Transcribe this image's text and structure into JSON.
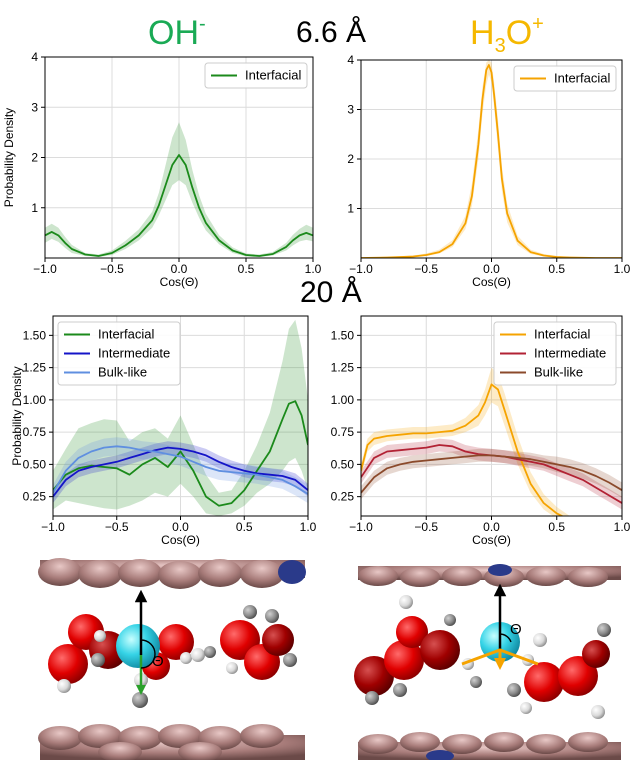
{
  "headings": {
    "oh_title": "OH",
    "oh_sup": "-",
    "h3o_title_h": "H",
    "h3o_title_sub": "3",
    "h3o_title_o": "O",
    "h3o_title_sup": "+",
    "distance_top": "6.6 Å",
    "distance_mid": "20 Å"
  },
  "theta_symbol": "Θ",
  "colors": {
    "interfacial_oh": "#1b8a1b",
    "interfacial_h3o": "#f5a300",
    "intermediate_oh": "#1414c8",
    "bulk_oh": "#5f8fe0",
    "intermediate_h3o": "#b22234",
    "bulk_h3o": "#8b4a2b",
    "oh_title": "#1aaa55",
    "h3o_title": "#f5b800"
  },
  "chart_data": [
    {
      "id": "oh_6_6",
      "type": "line",
      "xlabel": "Cos(Θ)",
      "ylabel": "Probability Density",
      "xlim": [
        -1.0,
        1.0
      ],
      "ylim": [
        0.0,
        4.0
      ],
      "xticks": [
        "−1.0",
        "−0.5",
        "0.0",
        "0.5",
        "1.0"
      ],
      "yticks": [
        "1",
        "2",
        "3",
        "4"
      ],
      "ytick_values": [
        1,
        2,
        3,
        4
      ],
      "grid": true,
      "legend": "top-right",
      "series": [
        {
          "name": "Interfacial",
          "color": "#1b8a1b",
          "x": [
            -1.0,
            -0.95,
            -0.9,
            -0.85,
            -0.8,
            -0.7,
            -0.6,
            -0.5,
            -0.4,
            -0.3,
            -0.2,
            -0.15,
            -0.1,
            -0.05,
            0.0,
            0.05,
            0.1,
            0.15,
            0.2,
            0.3,
            0.4,
            0.5,
            0.6,
            0.7,
            0.8,
            0.85,
            0.9,
            0.95,
            1.0
          ],
          "y": [
            0.45,
            0.52,
            0.45,
            0.3,
            0.18,
            0.07,
            0.04,
            0.1,
            0.25,
            0.45,
            0.75,
            1.05,
            1.45,
            1.85,
            2.05,
            1.85,
            1.4,
            1.0,
            0.7,
            0.35,
            0.15,
            0.06,
            0.04,
            0.08,
            0.22,
            0.35,
            0.45,
            0.5,
            0.45
          ],
          "band_low": [
            0.3,
            0.38,
            0.32,
            0.2,
            0.1,
            0.04,
            0.02,
            0.06,
            0.18,
            0.35,
            0.6,
            0.85,
            1.15,
            1.45,
            1.55,
            1.45,
            1.1,
            0.8,
            0.55,
            0.27,
            0.1,
            0.03,
            0.02,
            0.05,
            0.15,
            0.25,
            0.33,
            0.36,
            0.33
          ],
          "band_high": [
            0.6,
            0.68,
            0.6,
            0.42,
            0.26,
            0.1,
            0.07,
            0.15,
            0.34,
            0.57,
            0.92,
            1.3,
            1.85,
            2.4,
            2.7,
            2.35,
            1.75,
            1.25,
            0.88,
            0.45,
            0.21,
            0.09,
            0.07,
            0.12,
            0.3,
            0.46,
            0.58,
            0.66,
            0.6
          ]
        }
      ]
    },
    {
      "id": "h3o_6_6",
      "type": "line",
      "xlabel": "Cos(Θ)",
      "ylabel": "",
      "xlim": [
        -1.0,
        1.0
      ],
      "ylim": [
        0.0,
        4.0
      ],
      "xticks": [
        "−1.0",
        "−0.5",
        "0.0",
        "0.5",
        "1.0"
      ],
      "yticks": [
        "1",
        "2",
        "3",
        "4"
      ],
      "ytick_values": [
        1,
        2,
        3,
        4
      ],
      "grid": true,
      "legend": "top-right",
      "series": [
        {
          "name": "Interfacial",
          "color": "#f5a300",
          "x": [
            -1.0,
            -0.8,
            -0.6,
            -0.5,
            -0.4,
            -0.3,
            -0.2,
            -0.15,
            -0.1,
            -0.07,
            -0.04,
            -0.02,
            0.0,
            0.02,
            0.05,
            0.08,
            0.12,
            0.2,
            0.3,
            0.4,
            0.5,
            0.6,
            0.8,
            1.0
          ],
          "y": [
            0.0,
            0.01,
            0.03,
            0.06,
            0.12,
            0.28,
            0.7,
            1.25,
            2.3,
            3.2,
            3.8,
            3.9,
            3.75,
            3.3,
            2.5,
            1.6,
            0.9,
            0.35,
            0.12,
            0.05,
            0.02,
            0.01,
            0.0,
            0.0
          ],
          "band_low": [
            0.0,
            0.0,
            0.02,
            0.04,
            0.09,
            0.22,
            0.58,
            1.05,
            2.0,
            2.9,
            3.5,
            3.7,
            3.55,
            3.05,
            2.2,
            1.35,
            0.72,
            0.26,
            0.08,
            0.03,
            0.01,
            0.0,
            0.0,
            0.0
          ],
          "band_high": [
            0.01,
            0.02,
            0.05,
            0.09,
            0.17,
            0.36,
            0.85,
            1.5,
            2.6,
            3.45,
            3.95,
            4.0,
            3.95,
            3.55,
            2.8,
            1.85,
            1.1,
            0.45,
            0.17,
            0.08,
            0.04,
            0.02,
            0.01,
            0.01
          ]
        }
      ]
    },
    {
      "id": "oh_20",
      "type": "line",
      "xlabel": "Cos(Θ)",
      "ylabel": "Probability Density",
      "xlim": [
        -1.0,
        1.0
      ],
      "ylim": [
        0.1,
        1.65
      ],
      "xticks": [
        "−1.0",
        "−0.5",
        "0.0",
        "0.5",
        "1.0"
      ],
      "yticks": [
        "0.25",
        "0.50",
        "0.75",
        "1.00",
        "1.25",
        "1.50"
      ],
      "ytick_values": [
        0.25,
        0.5,
        0.75,
        1.0,
        1.25,
        1.5
      ],
      "grid": true,
      "legend": "top-left",
      "series": [
        {
          "name": "Interfacial",
          "color": "#1b8a1b",
          "x": [
            -1.0,
            -0.9,
            -0.8,
            -0.7,
            -0.6,
            -0.5,
            -0.4,
            -0.3,
            -0.2,
            -0.1,
            0.0,
            0.1,
            0.2,
            0.3,
            0.4,
            0.5,
            0.6,
            0.7,
            0.8,
            0.85,
            0.9,
            0.95,
            1.0
          ],
          "y": [
            0.3,
            0.42,
            0.47,
            0.49,
            0.48,
            0.47,
            0.42,
            0.5,
            0.55,
            0.48,
            0.6,
            0.45,
            0.25,
            0.18,
            0.2,
            0.3,
            0.45,
            0.6,
            0.85,
            0.97,
            0.99,
            0.88,
            0.65
          ],
          "band_low": [
            0.15,
            0.22,
            0.2,
            0.18,
            0.16,
            0.15,
            0.18,
            0.22,
            0.28,
            0.25,
            0.35,
            0.25,
            0.12,
            0.1,
            0.12,
            0.18,
            0.28,
            0.35,
            0.45,
            0.52,
            0.55,
            0.45,
            0.3
          ],
          "band_high": [
            0.45,
            0.62,
            0.78,
            0.82,
            0.85,
            0.84,
            0.68,
            0.75,
            0.78,
            0.7,
            0.88,
            0.65,
            0.42,
            0.28,
            0.3,
            0.45,
            0.65,
            0.9,
            1.3,
            1.55,
            1.62,
            1.4,
            1.0
          ]
        },
        {
          "name": "Intermediate",
          "color": "#1414c8",
          "x": [
            -1.0,
            -0.9,
            -0.8,
            -0.7,
            -0.6,
            -0.5,
            -0.4,
            -0.3,
            -0.2,
            -0.1,
            0.0,
            0.1,
            0.2,
            0.3,
            0.4,
            0.5,
            0.6,
            0.7,
            0.8,
            0.9,
            1.0
          ],
          "y": [
            0.25,
            0.38,
            0.45,
            0.48,
            0.5,
            0.52,
            0.55,
            0.58,
            0.61,
            0.63,
            0.62,
            0.6,
            0.57,
            0.52,
            0.48,
            0.45,
            0.43,
            0.42,
            0.41,
            0.38,
            0.3
          ],
          "band_low": [
            0.2,
            0.33,
            0.4,
            0.43,
            0.45,
            0.47,
            0.5,
            0.53,
            0.56,
            0.58,
            0.57,
            0.55,
            0.52,
            0.47,
            0.43,
            0.4,
            0.38,
            0.37,
            0.36,
            0.33,
            0.25
          ],
          "band_high": [
            0.3,
            0.43,
            0.5,
            0.53,
            0.55,
            0.57,
            0.6,
            0.63,
            0.66,
            0.68,
            0.67,
            0.65,
            0.62,
            0.57,
            0.53,
            0.5,
            0.48,
            0.47,
            0.46,
            0.43,
            0.35
          ]
        },
        {
          "name": "Bulk-like",
          "color": "#5f8fe0",
          "x": [
            -1.0,
            -0.9,
            -0.8,
            -0.7,
            -0.6,
            -0.5,
            -0.4,
            -0.3,
            -0.2,
            -0.1,
            0.0,
            0.1,
            0.2,
            0.3,
            0.4,
            0.5,
            0.6,
            0.7,
            0.8,
            0.9,
            1.0
          ],
          "y": [
            0.28,
            0.45,
            0.55,
            0.6,
            0.63,
            0.64,
            0.63,
            0.61,
            0.6,
            0.58,
            0.56,
            0.52,
            0.48,
            0.45,
            0.44,
            0.43,
            0.42,
            0.4,
            0.38,
            0.33,
            0.27
          ],
          "band_low": [
            0.22,
            0.38,
            0.48,
            0.53,
            0.56,
            0.57,
            0.56,
            0.54,
            0.53,
            0.51,
            0.49,
            0.45,
            0.41,
            0.38,
            0.37,
            0.36,
            0.35,
            0.33,
            0.31,
            0.26,
            0.2
          ],
          "band_high": [
            0.34,
            0.52,
            0.62,
            0.67,
            0.7,
            0.71,
            0.7,
            0.68,
            0.67,
            0.65,
            0.63,
            0.59,
            0.55,
            0.52,
            0.51,
            0.5,
            0.49,
            0.47,
            0.45,
            0.4,
            0.34
          ]
        }
      ]
    },
    {
      "id": "h3o_20",
      "type": "line",
      "xlabel": "Cos(Θ)",
      "ylabel": "",
      "xlim": [
        -1.0,
        1.0
      ],
      "ylim": [
        0.1,
        1.65
      ],
      "xticks": [
        "−1.0",
        "−0.5",
        "0.0",
        "0.5",
        "1.0"
      ],
      "yticks": [
        "0.25",
        "0.50",
        "0.75",
        "1.00",
        "1.25",
        "1.50"
      ],
      "ytick_values": [
        0.25,
        0.5,
        0.75,
        1.0,
        1.25,
        1.5
      ],
      "grid": true,
      "legend": "top-right",
      "series": [
        {
          "name": "Interfacial",
          "color": "#f5a300",
          "x": [
            -1.0,
            -0.95,
            -0.9,
            -0.8,
            -0.7,
            -0.6,
            -0.5,
            -0.4,
            -0.3,
            -0.2,
            -0.1,
            -0.05,
            0.0,
            0.05,
            0.1,
            0.2,
            0.3,
            0.4,
            0.5,
            0.6,
            0.7,
            0.8,
            0.9,
            1.0
          ],
          "y": [
            0.45,
            0.65,
            0.7,
            0.72,
            0.73,
            0.74,
            0.74,
            0.75,
            0.76,
            0.8,
            0.88,
            0.98,
            1.12,
            1.08,
            0.92,
            0.6,
            0.35,
            0.2,
            0.12,
            0.07,
            0.04,
            0.02,
            0.01,
            0.01
          ],
          "band_low": [
            0.4,
            0.6,
            0.65,
            0.68,
            0.69,
            0.7,
            0.7,
            0.71,
            0.72,
            0.75,
            0.8,
            0.88,
            0.98,
            0.95,
            0.8,
            0.5,
            0.28,
            0.15,
            0.08,
            0.04,
            0.02,
            0.01,
            0.0,
            0.0
          ],
          "band_high": [
            0.5,
            0.7,
            0.75,
            0.77,
            0.78,
            0.79,
            0.79,
            0.8,
            0.81,
            0.86,
            0.96,
            1.08,
            1.25,
            1.2,
            1.05,
            0.72,
            0.44,
            0.27,
            0.17,
            0.1,
            0.06,
            0.04,
            0.02,
            0.02
          ]
        },
        {
          "name": "Intermediate",
          "color": "#b22234",
          "x": [
            -1.0,
            -0.9,
            -0.8,
            -0.7,
            -0.6,
            -0.5,
            -0.4,
            -0.3,
            -0.2,
            -0.1,
            0.0,
            0.1,
            0.2,
            0.3,
            0.4,
            0.5,
            0.6,
            0.7,
            0.8,
            0.9,
            1.0
          ],
          "y": [
            0.4,
            0.55,
            0.6,
            0.61,
            0.62,
            0.63,
            0.65,
            0.64,
            0.6,
            0.58,
            0.57,
            0.56,
            0.54,
            0.52,
            0.5,
            0.46,
            0.42,
            0.38,
            0.32,
            0.26,
            0.2
          ],
          "band_low": [
            0.35,
            0.5,
            0.55,
            0.56,
            0.57,
            0.58,
            0.6,
            0.59,
            0.55,
            0.53,
            0.52,
            0.51,
            0.49,
            0.47,
            0.45,
            0.41,
            0.37,
            0.33,
            0.27,
            0.21,
            0.15
          ],
          "band_high": [
            0.45,
            0.6,
            0.65,
            0.66,
            0.67,
            0.68,
            0.7,
            0.69,
            0.65,
            0.63,
            0.62,
            0.61,
            0.59,
            0.57,
            0.55,
            0.51,
            0.47,
            0.43,
            0.37,
            0.31,
            0.25
          ]
        },
        {
          "name": "Bulk-like",
          "color": "#8b4a2b",
          "x": [
            -1.0,
            -0.9,
            -0.8,
            -0.7,
            -0.6,
            -0.5,
            -0.4,
            -0.3,
            -0.2,
            -0.1,
            0.0,
            0.1,
            0.2,
            0.3,
            0.4,
            0.5,
            0.6,
            0.7,
            0.8,
            0.9,
            1.0
          ],
          "y": [
            0.28,
            0.4,
            0.47,
            0.5,
            0.52,
            0.53,
            0.54,
            0.55,
            0.56,
            0.57,
            0.57,
            0.56,
            0.55,
            0.54,
            0.52,
            0.5,
            0.48,
            0.45,
            0.41,
            0.36,
            0.3
          ],
          "band_low": [
            0.23,
            0.35,
            0.42,
            0.45,
            0.47,
            0.48,
            0.49,
            0.5,
            0.51,
            0.52,
            0.52,
            0.51,
            0.5,
            0.49,
            0.47,
            0.44,
            0.42,
            0.39,
            0.35,
            0.3,
            0.24
          ],
          "band_high": [
            0.33,
            0.45,
            0.52,
            0.55,
            0.57,
            0.58,
            0.59,
            0.6,
            0.61,
            0.62,
            0.62,
            0.61,
            0.6,
            0.59,
            0.57,
            0.56,
            0.54,
            0.51,
            0.47,
            0.42,
            0.36
          ]
        }
      ]
    }
  ]
}
